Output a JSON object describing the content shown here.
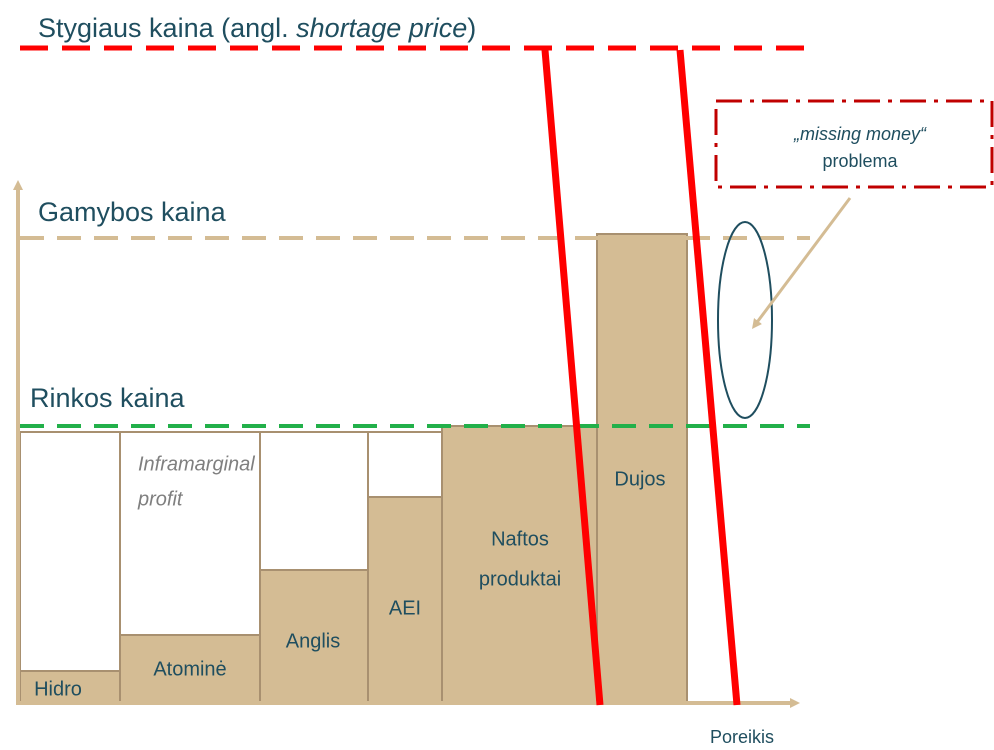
{
  "shortage_price": {
    "prefix": "Stygiaus kaina (angl. ",
    "italic": "shortage price",
    "suffix": ")"
  },
  "production_price": "Gamybos kaina",
  "market_price": "Rinkos kaina",
  "missing_money": {
    "line1": "„missing money“",
    "line2": "problema"
  },
  "inframarginal": {
    "line1": "Inframarginal",
    "line2": "profit"
  },
  "plants": {
    "hidro": "Hidro",
    "atomine": "Atominė",
    "anglis": "Anglis",
    "aei": "AEI",
    "naftos": {
      "line1": "Naftos",
      "line2": "produktai"
    },
    "dujos": "Dujos"
  },
  "x_axis_label": "Poreikis"
}
